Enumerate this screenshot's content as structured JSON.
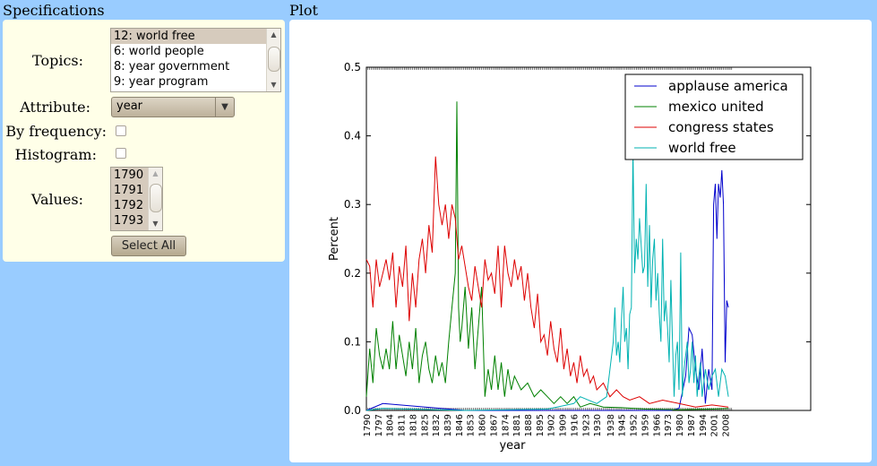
{
  "headers": {
    "specifications": "Specifications",
    "plot": "Plot"
  },
  "spec": {
    "topics_label": "Topics:",
    "topics": [
      "12: world free",
      "6: world people",
      "8: year government",
      "9: year program"
    ],
    "topics_selected_index": 0,
    "attribute_label": "Attribute:",
    "attribute_value": "year",
    "by_frequency_label": "By frequency:",
    "by_frequency_checked": false,
    "histogram_label": "Histogram:",
    "histogram_checked": false,
    "values_label": "Values:",
    "values": [
      "1790",
      "1791",
      "1792",
      "1793"
    ],
    "select_all_label": "Select All"
  },
  "chart_data": {
    "type": "line",
    "xlabel": "year",
    "ylabel": "Percent",
    "ylim": [
      0,
      0.5
    ],
    "yticks": [
      "0.0",
      "0.1",
      "0.2",
      "0.3",
      "0.4",
      "0.5"
    ],
    "xlim": [
      1790,
      2060
    ],
    "xtick_labels": [
      "1790",
      "1797",
      "1804",
      "1811",
      "1818",
      "1825",
      "1832",
      "1839",
      "1846",
      "1853",
      "1860",
      "1867",
      "1874",
      "1881",
      "1888",
      "1895",
      "1902",
      "1909",
      "1916",
      "1923",
      "1930",
      "1938",
      "1945",
      "1952",
      "1959",
      "1966",
      "1973",
      "1980",
      "1987",
      "1994",
      "2001",
      "2008"
    ],
    "legend_position": "top-right",
    "series": [
      {
        "name": "applause america",
        "color": "#0000cc",
        "x": [
          1790,
          1800,
          1850,
          1900,
          1950,
          1975,
          1980,
          1984,
          1986,
          1988,
          1990,
          1992,
          1994,
          1996,
          1998,
          2000,
          2001,
          2002,
          2003,
          2004,
          2005,
          2006,
          2007,
          2008,
          2009,
          2010
        ],
        "y": [
          0,
          0.01,
          0,
          0,
          0,
          0,
          0.003,
          0.05,
          0.12,
          0.11,
          0.06,
          0.03,
          0.09,
          0.01,
          0.06,
          0.03,
          0.3,
          0.33,
          0.25,
          0.33,
          0.31,
          0.35,
          0.3,
          0.07,
          0.16,
          0.15
        ]
      },
      {
        "name": "mexico united",
        "color": "#008000",
        "x": [
          1790,
          1792,
          1794,
          1796,
          1798,
          1800,
          1802,
          1804,
          1806,
          1808,
          1810,
          1812,
          1814,
          1816,
          1818,
          1820,
          1822,
          1824,
          1826,
          1828,
          1830,
          1832,
          1834,
          1836,
          1838,
          1840,
          1842,
          1844,
          1845,
          1846,
          1847,
          1848,
          1850,
          1852,
          1854,
          1856,
          1858,
          1860,
          1862,
          1864,
          1866,
          1868,
          1870,
          1872,
          1874,
          1876,
          1878,
          1880,
          1884,
          1888,
          1892,
          1896,
          1900,
          1904,
          1908,
          1912,
          1916,
          1920,
          1926,
          1934,
          1945,
          1960,
          1980,
          2000,
          2010
        ],
        "y": [
          0.02,
          0.09,
          0.04,
          0.12,
          0.08,
          0.06,
          0.09,
          0.06,
          0.13,
          0.06,
          0.11,
          0.08,
          0.05,
          0.1,
          0.06,
          0.12,
          0.04,
          0.08,
          0.1,
          0.06,
          0.04,
          0.08,
          0.05,
          0.07,
          0.04,
          0.1,
          0.15,
          0.2,
          0.45,
          0.15,
          0.1,
          0.12,
          0.18,
          0.09,
          0.15,
          0.06,
          0.12,
          0.18,
          0.02,
          0.06,
          0.03,
          0.08,
          0.03,
          0.07,
          0.02,
          0.06,
          0.03,
          0.05,
          0.03,
          0.04,
          0.02,
          0.03,
          0.02,
          0.01,
          0.02,
          0.01,
          0.02,
          0.005,
          0.01,
          0.005,
          0.004,
          0.002,
          0.001,
          0.002,
          0.003
        ]
      },
      {
        "name": "congress states",
        "color": "#dd0000",
        "x": [
          1790,
          1792,
          1794,
          1796,
          1798,
          1800,
          1802,
          1804,
          1806,
          1808,
          1810,
          1812,
          1814,
          1816,
          1818,
          1820,
          1822,
          1824,
          1826,
          1828,
          1830,
          1832,
          1834,
          1836,
          1838,
          1840,
          1842,
          1844,
          1846,
          1848,
          1850,
          1852,
          1854,
          1856,
          1858,
          1860,
          1862,
          1864,
          1866,
          1868,
          1870,
          1872,
          1874,
          1876,
          1878,
          1880,
          1882,
          1884,
          1886,
          1888,
          1890,
          1892,
          1894,
          1896,
          1898,
          1900,
          1902,
          1904,
          1906,
          1908,
          1910,
          1912,
          1914,
          1916,
          1918,
          1920,
          1922,
          1924,
          1926,
          1928,
          1930,
          1934,
          1938,
          1942,
          1946,
          1950,
          1956,
          1962,
          1970,
          1980,
          1990,
          2000,
          2010
        ],
        "y": [
          0.22,
          0.21,
          0.15,
          0.22,
          0.18,
          0.2,
          0.22,
          0.19,
          0.23,
          0.15,
          0.21,
          0.18,
          0.24,
          0.13,
          0.2,
          0.15,
          0.22,
          0.25,
          0.2,
          0.27,
          0.23,
          0.37,
          0.3,
          0.27,
          0.3,
          0.25,
          0.3,
          0.28,
          0.22,
          0.24,
          0.21,
          0.18,
          0.16,
          0.21,
          0.18,
          0.15,
          0.22,
          0.19,
          0.2,
          0.17,
          0.24,
          0.15,
          0.24,
          0.2,
          0.18,
          0.22,
          0.19,
          0.21,
          0.16,
          0.2,
          0.15,
          0.12,
          0.17,
          0.1,
          0.11,
          0.08,
          0.13,
          0.09,
          0.07,
          0.12,
          0.06,
          0.09,
          0.05,
          0.07,
          0.04,
          0.08,
          0.05,
          0.06,
          0.04,
          0.05,
          0.03,
          0.04,
          0.02,
          0.03,
          0.02,
          0.015,
          0.02,
          0.01,
          0.015,
          0.01,
          0.005,
          0.008,
          0.005
        ]
      },
      {
        "name": "world free",
        "color": "#00b2b2",
        "x": [
          1790,
          1800,
          1850,
          1900,
          1916,
          1920,
          1930,
          1936,
          1938,
          1940,
          1941,
          1942,
          1943,
          1944,
          1945,
          1946,
          1947,
          1948,
          1949,
          1950,
          1951,
          1952,
          1953,
          1954,
          1955,
          1956,
          1957,
          1958,
          1959,
          1960,
          1961,
          1962,
          1963,
          1964,
          1965,
          1966,
          1967,
          1968,
          1969,
          1970,
          1971,
          1972,
          1973,
          1974,
          1975,
          1976,
          1977,
          1978,
          1979,
          1980,
          1981,
          1982,
          1983,
          1984,
          1985,
          1986,
          1987,
          1988,
          1989,
          1990,
          1991,
          1992,
          1993,
          1994,
          1995,
          1996,
          1998,
          2000,
          2002,
          2004,
          2006,
          2008,
          2010
        ],
        "y": [
          0,
          0.003,
          0,
          0.002,
          0.01,
          0.02,
          0.01,
          0.02,
          0.06,
          0.1,
          0.15,
          0.08,
          0.1,
          0.07,
          0.13,
          0.18,
          0.1,
          0.12,
          0.06,
          0.14,
          0.15,
          0.38,
          0.2,
          0.25,
          0.22,
          0.28,
          0.24,
          0.2,
          0.21,
          0.33,
          0.18,
          0.27,
          0.15,
          0.22,
          0.25,
          0.16,
          0.2,
          0.14,
          0.1,
          0.25,
          0.13,
          0.16,
          0.12,
          0.07,
          0.19,
          0.1,
          0.02,
          0.08,
          0.1,
          0.03,
          0.23,
          0.02,
          0.06,
          0.08,
          0.1,
          0.04,
          0.06,
          0.1,
          0.04,
          0.08,
          0.02,
          0.05,
          0.07,
          0.02,
          0.04,
          0.06,
          0.03,
          0.05,
          0.06,
          0.02,
          0.06,
          0.05,
          0.02
        ]
      }
    ]
  }
}
